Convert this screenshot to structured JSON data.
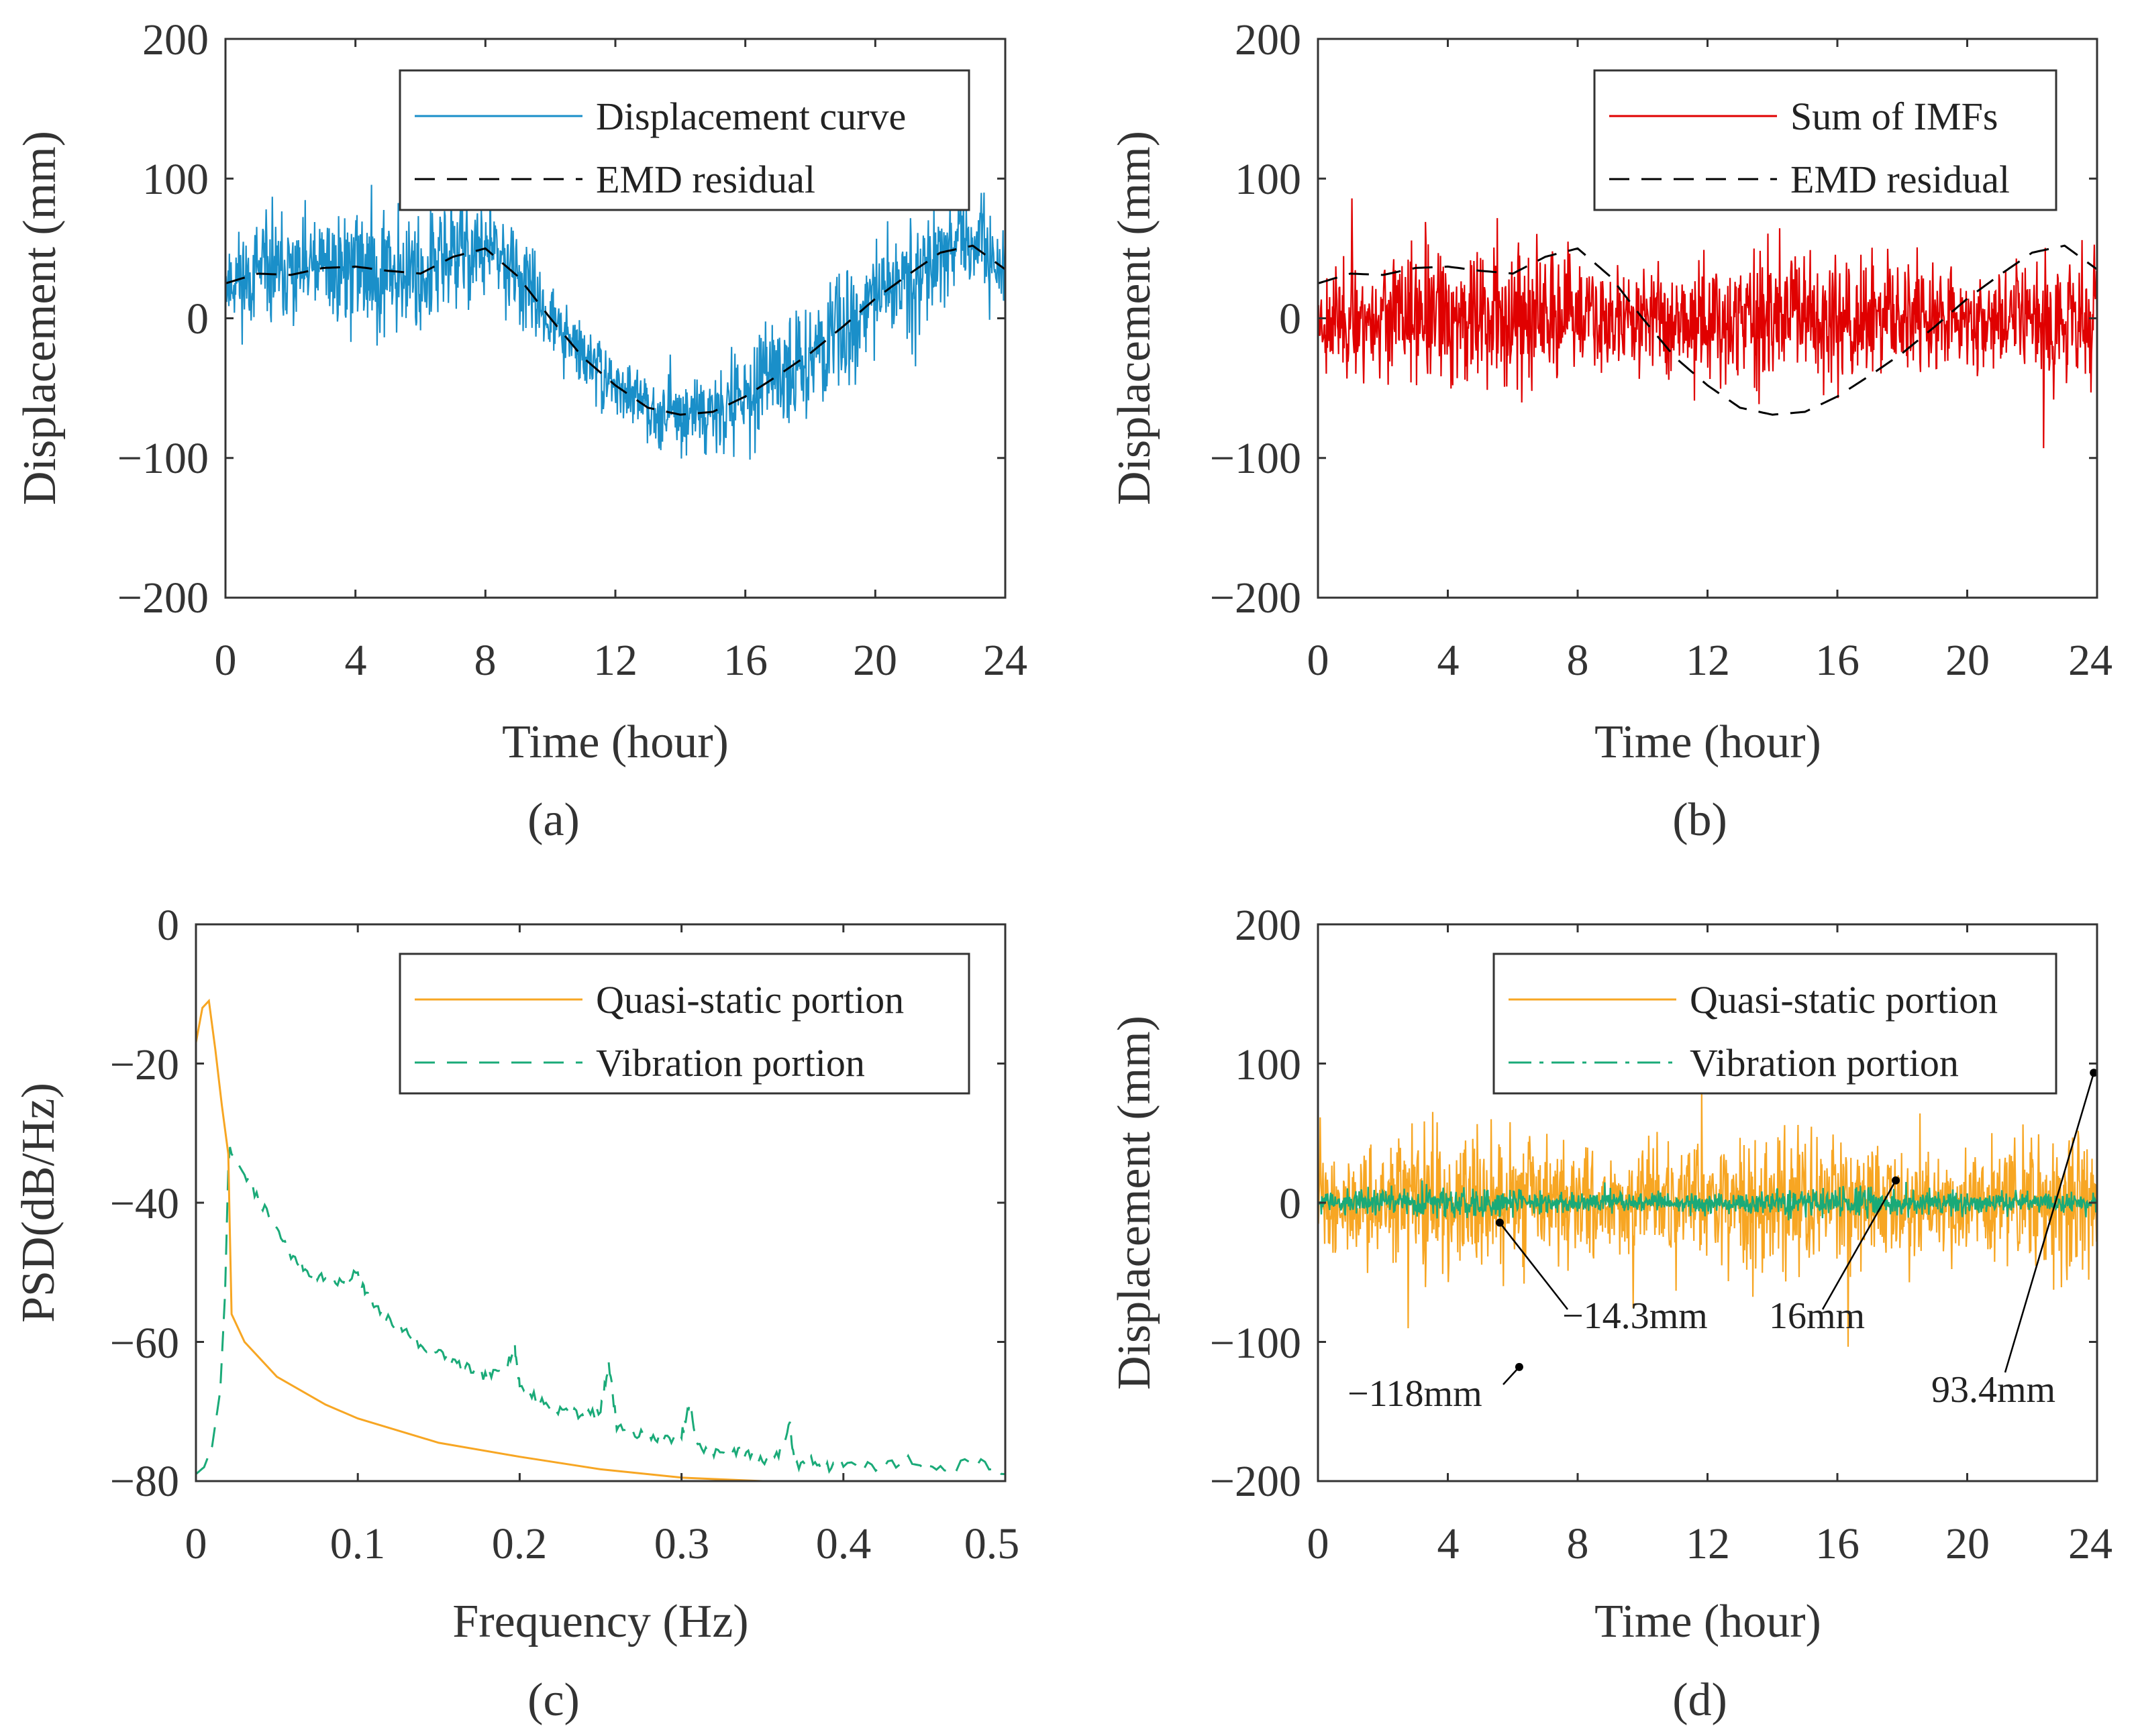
{
  "colors": {
    "displacement": "#1a8fc9",
    "imfs": "#e00000",
    "residual": "#000000",
    "quasi_static": "#f7a623",
    "vibration": "#1aaa78",
    "axis": "#333333"
  },
  "chart_data": [
    {
      "id": "a",
      "type": "line",
      "caption": "(a)",
      "xlabel": "Time (hour)",
      "ylabel": "Displacement (mm)",
      "xlim": [
        0,
        24
      ],
      "ylim": [
        -200,
        200
      ],
      "xticks": [
        "0",
        "4",
        "8",
        "12",
        "16",
        "20",
        "24"
      ],
      "yticks": [
        "200",
        "100",
        "0",
        "−100",
        "−200"
      ],
      "legend_position": "top-right",
      "series": [
        {
          "name": "Displacement curve",
          "style": "solid",
          "color": "#1a8fc9",
          "noise_amplitude": 45,
          "description": "EMD residual plus high-frequency vibration",
          "range": [
            -125,
            125
          ]
        },
        {
          "name": "EMD residual",
          "style": "dashed",
          "color": "#000000",
          "x": [
            0,
            1,
            2,
            3,
            4,
            5,
            6,
            7,
            8,
            9,
            10,
            11,
            12,
            13,
            14,
            15,
            16,
            17,
            18,
            19,
            20,
            21,
            22,
            23,
            24
          ],
          "values": [
            25,
            32,
            31,
            36,
            37,
            34,
            32,
            44,
            50,
            30,
            0,
            -28,
            -48,
            -64,
            -69,
            -67,
            -56,
            -41,
            -25,
            -6,
            14,
            31,
            47,
            52,
            35
          ]
        }
      ]
    },
    {
      "id": "b",
      "type": "line",
      "caption": "(b)",
      "xlabel": "Time (hour)",
      "ylabel": "Displacement (mm)",
      "xlim": [
        0,
        24
      ],
      "ylim": [
        -200,
        200
      ],
      "xticks": [
        "0",
        "4",
        "8",
        "12",
        "16",
        "20",
        "24"
      ],
      "yticks": [
        "200",
        "100",
        "0",
        "−100",
        "−200"
      ],
      "legend_position": "top-right",
      "series": [
        {
          "name": "Sum of IMFs",
          "style": "solid",
          "color": "#e00000",
          "noise_amplitude": 45,
          "description": "zero-mean vibration component",
          "range": [
            -115,
            90
          ]
        },
        {
          "name": "EMD residual",
          "style": "dashed",
          "color": "#000000",
          "x": [
            0,
            1,
            2,
            3,
            4,
            5,
            6,
            7,
            8,
            9,
            10,
            11,
            12,
            13,
            14,
            15,
            16,
            17,
            18,
            19,
            20,
            21,
            22,
            23,
            24
          ],
          "values": [
            25,
            32,
            31,
            36,
            37,
            34,
            32,
            44,
            50,
            30,
            0,
            -28,
            -48,
            -64,
            -69,
            -67,
            -56,
            -41,
            -25,
            -6,
            14,
            31,
            47,
            52,
            35
          ]
        }
      ]
    },
    {
      "id": "c",
      "type": "line",
      "caption": "(c)",
      "xlabel": "Frequency (Hz)",
      "ylabel": "PSD(dB/Hz)",
      "xlim": [
        0,
        0.5
      ],
      "ylim": [
        -80,
        0
      ],
      "xticks": [
        "0",
        "0.1",
        "0.2",
        "0.3",
        "0.4",
        "0.5"
      ],
      "yticks": [
        "0",
        "−20",
        "−40",
        "−60",
        "−80"
      ],
      "legend_position": "top-right",
      "series": [
        {
          "name": "Quasi-static portion",
          "style": "solid",
          "color": "#f7a623",
          "x": [
            0,
            0.004,
            0.008,
            0.012,
            0.016,
            0.02,
            0.021,
            0.022,
            0.03,
            0.05,
            0.08,
            0.1,
            0.15,
            0.2,
            0.25,
            0.3,
            0.35
          ],
          "values": [
            -17,
            -12,
            -11,
            -18,
            -26,
            -33,
            -45,
            -56,
            -60,
            -65,
            -69,
            -71,
            -74.5,
            -76.5,
            -78.3,
            -79.5,
            -80
          ]
        },
        {
          "name": "Vibration portion",
          "style": "dashed",
          "color": "#1aaa78",
          "x": [
            0,
            0.005,
            0.01,
            0.015,
            0.018,
            0.02,
            0.021,
            0.022,
            0.025,
            0.03,
            0.04,
            0.05,
            0.06,
            0.07,
            0.08,
            0.09,
            0.1,
            0.105,
            0.11,
            0.12,
            0.13,
            0.14,
            0.15,
            0.16,
            0.17,
            0.18,
            0.19,
            0.197,
            0.2,
            0.21,
            0.22,
            0.23,
            0.24,
            0.25,
            0.255,
            0.26,
            0.27,
            0.28,
            0.29,
            0.3,
            0.305,
            0.31,
            0.32,
            0.33,
            0.34,
            0.35,
            0.36,
            0.367,
            0.37,
            0.38,
            0.39,
            0.4,
            0.42,
            0.44,
            0.46,
            0.48,
            0.5
          ],
          "values": [
            -79,
            -78,
            -75,
            -67,
            -53,
            -35,
            -32,
            -33,
            -34,
            -36,
            -40,
            -44,
            -48,
            -50,
            -51,
            -51.5,
            -50,
            -53,
            -55,
            -57,
            -58.5,
            -61,
            -61.5,
            -63,
            -64,
            -65,
            -64,
            -61,
            -66,
            -68,
            -69.5,
            -70,
            -70.5,
            -70,
            -63,
            -72,
            -73,
            -73.5,
            -74,
            -73.5,
            -69,
            -75,
            -76,
            -75.5,
            -76,
            -77,
            -76,
            -72,
            -78,
            -77,
            -78,
            -77.5,
            -78,
            -77,
            -78.5,
            -77,
            -79
          ]
        }
      ]
    },
    {
      "id": "d",
      "type": "line",
      "caption": "(d)",
      "xlabel": "Time (hour)",
      "ylabel": "Displacement (mm)",
      "xlim": [
        0,
        24
      ],
      "ylim": [
        -200,
        200
      ],
      "xticks": [
        "0",
        "4",
        "8",
        "12",
        "16",
        "20",
        "24"
      ],
      "yticks": [
        "200",
        "100",
        "0",
        "−100",
        "−200"
      ],
      "legend_position": "top-right",
      "series": [
        {
          "name": "Quasi-static portion",
          "style": "solid",
          "color": "#f7a623",
          "noise_amplitude": 45,
          "range": [
            -118,
            93.4
          ]
        },
        {
          "name": "Vibration portion",
          "style": "dash-dot",
          "color": "#1aaa78",
          "noise_amplitude": 10,
          "range": [
            -14.3,
            16
          ]
        }
      ],
      "annotations": [
        {
          "text": "−118mm",
          "x": 6.2,
          "y": -118
        },
        {
          "text": "−14.3mm",
          "x": 5.6,
          "y": -14.3
        },
        {
          "text": "16mm",
          "x": 17.8,
          "y": 16
        },
        {
          "text": "93.4mm",
          "x": 23.9,
          "y": 93.4
        }
      ]
    }
  ]
}
